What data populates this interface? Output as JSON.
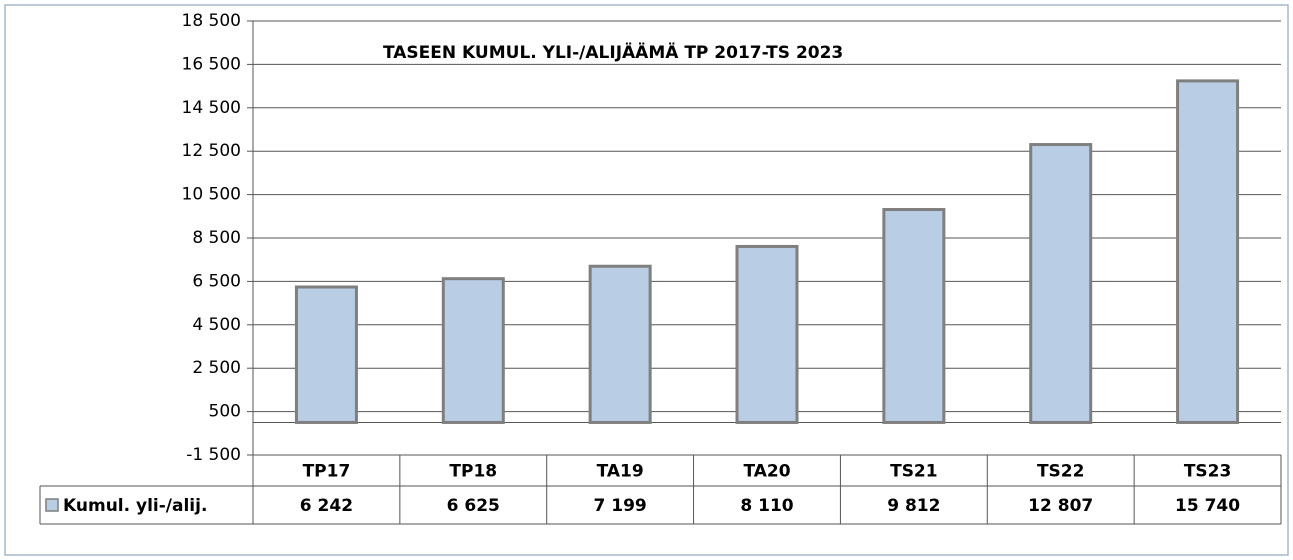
{
  "chart_data": {
    "type": "bar",
    "title": "TASEEN KUMUL. YLI-/ALIJÄÄMÄ TP 2017-TS 2023",
    "categories": [
      "TP17",
      "TP18",
      "TA19",
      "TA20",
      "TS21",
      "TS22",
      "TS23"
    ],
    "series": [
      {
        "name": "Kumul. yli-/alij.",
        "color": "#b9cde5",
        "values": [
          6242,
          6625,
          7199,
          8110,
          9812,
          12807,
          15740
        ],
        "value_labels": [
          "6 242",
          "6 625",
          "7 199",
          "8 110",
          "9 812",
          "12 807",
          "15 740"
        ]
      }
    ],
    "ylim": [
      -1500,
      18500
    ],
    "yticks": [
      {
        "value": -1500,
        "label": "-1 500"
      },
      500,
      {
        "value": 2500,
        "label": "2 500"
      },
      {
        "value": 4500,
        "label": "4 500"
      },
      {
        "value": 6500,
        "label": "6 500"
      },
      {
        "value": 8500,
        "label": "8 500"
      },
      {
        "value": 10500,
        "label": "10 500"
      },
      {
        "value": 12500,
        "label": "12 500"
      },
      {
        "value": 14500,
        "label": "14 500"
      },
      {
        "value": 16500,
        "label": "16 500"
      },
      {
        "value": 18500,
        "label": "18 500"
      }
    ],
    "grid": true
  }
}
